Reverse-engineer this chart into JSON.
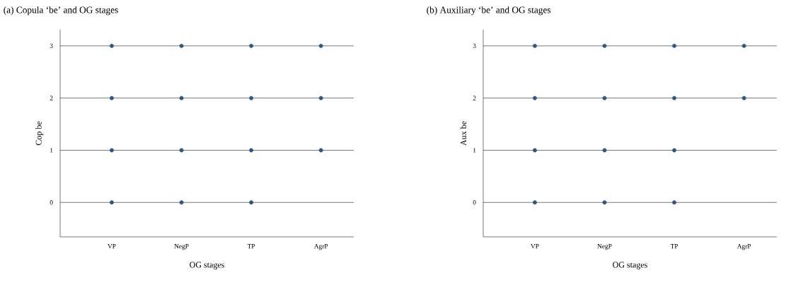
{
  "chart_data": [
    {
      "type": "scatter",
      "title": "(a) Copula ‘be’ and OG stages",
      "xlabel": "OG stages",
      "ylabel": "Cop be",
      "categories": [
        "VP",
        "NegP",
        "TP",
        "AgrP"
      ],
      "series": [
        {
          "color": "#2c5785",
          "x": [
            "VP",
            "VP",
            "VP",
            "VP",
            "NegP",
            "NegP",
            "NegP",
            "NegP",
            "TP",
            "TP",
            "TP",
            "TP",
            "AgrP",
            "AgrP",
            "AgrP"
          ],
          "values": [
            0,
            1,
            2,
            3,
            0,
            1,
            2,
            3,
            0,
            1,
            2,
            3,
            1,
            2,
            3
          ]
        }
      ],
      "ylim": [
        -0.66,
        3.31
      ],
      "yticks": [
        0,
        1,
        2,
        3
      ],
      "grid": "y"
    },
    {
      "type": "scatter",
      "title": "(b) Auxiliary ‘be’ and OG stages",
      "xlabel": "OG stages",
      "ylabel": "Aux be",
      "categories": [
        "VP",
        "NegP",
        "TP",
        "AgrP"
      ],
      "series": [
        {
          "color": "#2c5785",
          "x": [
            "VP",
            "VP",
            "VP",
            "VP",
            "NegP",
            "NegP",
            "NegP",
            "NegP",
            "TP",
            "TP",
            "TP",
            "TP",
            "AgrP",
            "AgrP"
          ],
          "values": [
            0,
            1,
            2,
            3,
            0,
            1,
            2,
            3,
            0,
            1,
            2,
            3,
            2,
            3
          ]
        }
      ],
      "ylim": [
        -0.66,
        3.31
      ],
      "yticks": [
        0,
        1,
        2,
        3
      ],
      "grid": "y"
    }
  ]
}
